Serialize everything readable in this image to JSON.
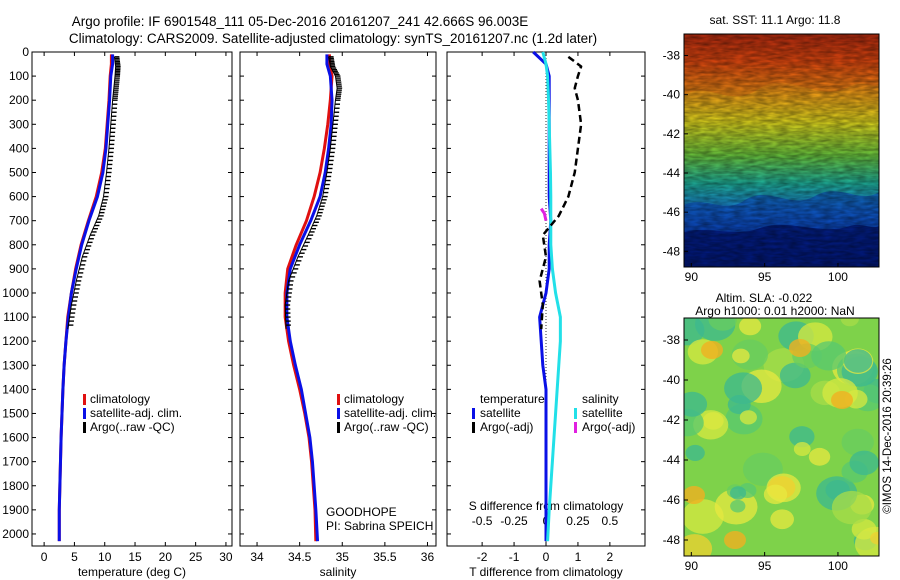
{
  "header": {
    "title": "Argo profile: IF 6901548_111 05-Dec-2016 20161207_241 42.666S 96.003E",
    "subtitle": "Climatology: CARS2009. Satellite-adjusted climatology: synTS_20161207.nc (1.2d later)"
  },
  "colors": {
    "climatology": "#e01010",
    "satellite": "#0a10e6",
    "argo": "#000000",
    "salinity_satellite": "#22e0e8",
    "salinity_argo": "#e020e0"
  },
  "chart_data": [
    {
      "type": "line",
      "id": "temperature",
      "xlabel": "temperature (deg C)",
      "xlim": [
        -2,
        31
      ],
      "ylim": [
        0,
        2050
      ],
      "y_inverted": true,
      "xticks": [
        0,
        5,
        10,
        15,
        20,
        25,
        30
      ],
      "yticks": [
        0,
        100,
        200,
        300,
        400,
        500,
        600,
        700,
        800,
        900,
        1000,
        1100,
        1200,
        1300,
        1400,
        1500,
        1600,
        1700,
        1800,
        1900,
        2000
      ],
      "legend": [
        "climatology",
        "satellite-adj. clim.",
        "Argo(..raw -QC)"
      ],
      "legend_loc": "lower-center",
      "series": [
        {
          "name": "climatology",
          "color_key": "climatology",
          "style": "solid",
          "x": [
            11.1,
            11.1,
            10.9,
            10.7,
            10.4,
            10.1,
            9.5,
            8.6,
            7.3,
            6.1,
            5.2,
            4.5,
            3.9,
            3.6,
            3.3,
            3.1,
            2.95,
            2.8,
            2.7,
            2.6,
            2.5,
            2.5
          ],
          "y": [
            10,
            50,
            100,
            200,
            300,
            400,
            500,
            600,
            700,
            800,
            900,
            1000,
            1100,
            1200,
            1300,
            1400,
            1500,
            1600,
            1700,
            1800,
            1900,
            2030
          ]
        },
        {
          "name": "satellite-adj. clim.",
          "color_key": "satellite",
          "style": "solid",
          "x": [
            11.3,
            11.3,
            11.0,
            10.8,
            10.5,
            10.2,
            9.7,
            8.8,
            7.4,
            6.2,
            5.3,
            4.5,
            4.0,
            3.6,
            3.3,
            3.1,
            2.95,
            2.8,
            2.7,
            2.6,
            2.5,
            2.5
          ],
          "y": [
            10,
            50,
            100,
            200,
            300,
            400,
            500,
            600,
            700,
            800,
            900,
            1000,
            1100,
            1200,
            1300,
            1400,
            1500,
            1600,
            1700,
            1800,
            1900,
            2030
          ]
        },
        {
          "name": "Argo(..raw -QC)",
          "color_key": "argo",
          "style": "ticks",
          "x": [
            11.6,
            11.8,
            11.7,
            11.5,
            11.3,
            11.0,
            10.7,
            10.3,
            9.8,
            9.0,
            7.6,
            6.3,
            5.3,
            4.5,
            3.9
          ],
          "y": [
            20,
            60,
            100,
            150,
            200,
            300,
            400,
            500,
            600,
            680,
            760,
            850,
            950,
            1050,
            1150
          ]
        }
      ]
    },
    {
      "type": "line",
      "id": "salinity",
      "xlabel": "salinity",
      "xlim": [
        33.8,
        36.1
      ],
      "ylim": [
        0,
        2050
      ],
      "y_inverted": true,
      "xticks": [
        34,
        34.5,
        35,
        35.5,
        36
      ],
      "legend": [
        "climatology",
        "satellite-adj. clim.",
        "Argo(..raw -QC)"
      ],
      "legend_loc": "lower-right",
      "annotation": [
        "GOODHOPE",
        "PI: Sabrina SPEICH"
      ],
      "series": [
        {
          "name": "climatology",
          "color_key": "climatology",
          "style": "solid",
          "x": [
            34.85,
            34.85,
            34.88,
            34.86,
            34.83,
            34.79,
            34.74,
            34.67,
            34.58,
            34.46,
            34.36,
            34.33,
            34.33,
            34.37,
            34.43,
            34.5,
            34.56,
            34.61,
            34.64,
            34.66,
            34.68,
            34.69
          ],
          "y": [
            10,
            50,
            100,
            200,
            300,
            400,
            500,
            600,
            700,
            800,
            900,
            1000,
            1100,
            1200,
            1300,
            1400,
            1500,
            1600,
            1700,
            1800,
            1900,
            2030
          ]
        },
        {
          "name": "satellite-adj. clim.",
          "color_key": "satellite",
          "style": "solid",
          "x": [
            34.82,
            34.82,
            34.86,
            34.88,
            34.87,
            34.84,
            34.8,
            34.74,
            34.63,
            34.5,
            34.39,
            34.35,
            34.35,
            34.39,
            34.45,
            34.52,
            34.57,
            34.62,
            34.65,
            34.67,
            34.69,
            34.71
          ],
          "y": [
            10,
            50,
            100,
            200,
            300,
            400,
            500,
            600,
            700,
            800,
            900,
            1000,
            1100,
            1200,
            1300,
            1400,
            1500,
            1600,
            1700,
            1800,
            1900,
            2030
          ]
        },
        {
          "name": "Argo(..raw -QC)",
          "color_key": "argo",
          "style": "ticks",
          "x": [
            34.84,
            34.86,
            34.92,
            34.94,
            34.92,
            34.89,
            34.86,
            34.82,
            34.77,
            34.7,
            34.6,
            34.48,
            34.37,
            34.33,
            34.34
          ],
          "y": [
            20,
            60,
            100,
            150,
            200,
            300,
            400,
            500,
            600,
            680,
            760,
            850,
            950,
            1050,
            1150
          ]
        }
      ]
    },
    {
      "type": "line",
      "id": "difference",
      "xlabel": "T difference from climatology",
      "xlabel_top": "S difference from climatology",
      "xlim": [
        -3.1,
        3.1
      ],
      "ylim": [
        0,
        2050
      ],
      "y_inverted": true,
      "xticks": [
        -2,
        -1,
        0,
        1,
        2
      ],
      "xticks_top": [
        "-0.5",
        "-0.25",
        "0",
        "0.25",
        "0.5"
      ],
      "legend_groups": [
        {
          "heading": "temperature",
          "items": [
            "satellite",
            "Argo(-adj)"
          ]
        },
        {
          "heading": "salinity",
          "items": [
            "satellite",
            "Argo(-adj)"
          ]
        }
      ],
      "series": [
        {
          "name": "temperature satellite",
          "color_key": "satellite",
          "style": "solid",
          "x": [
            -0.4,
            0.0,
            0.1,
            0.1,
            0.1,
            0.1,
            0.1,
            0.1,
            0.15,
            0.1,
            0.1,
            0.0,
            -0.2,
            -0.15,
            -0.1,
            0.0,
            0.0,
            0.0,
            0.0,
            0.0,
            0.0,
            0.0
          ],
          "y": [
            0,
            50,
            100,
            200,
            300,
            400,
            500,
            600,
            700,
            800,
            900,
            1000,
            1100,
            1200,
            1300,
            1400,
            1500,
            1600,
            1700,
            1800,
            1900,
            2030
          ]
        },
        {
          "name": "salinity satellite",
          "color_key": "salinity_satellite",
          "style": "solid",
          "x": [
            -0.1,
            0.0,
            0.05,
            0.08,
            0.1,
            0.12,
            0.14,
            0.15,
            0.15,
            0.15,
            0.2,
            0.3,
            0.45,
            0.45,
            0.4,
            0.35,
            0.3,
            0.25,
            0.2,
            0.15,
            0.1,
            0.05
          ],
          "y": [
            0,
            50,
            100,
            200,
            300,
            400,
            500,
            600,
            700,
            800,
            900,
            1000,
            1100,
            1200,
            1300,
            1400,
            1500,
            1600,
            1700,
            1800,
            1900,
            2030
          ]
        },
        {
          "name": "temperature Argo(-adj)",
          "color_key": "argo",
          "style": "dashed",
          "x": [
            0.7,
            1.1,
            1.0,
            0.9,
            1.0,
            1.1,
            1.0,
            0.9,
            0.7,
            0.4,
            -0.1,
            0.0,
            -0.2,
            -0.1,
            -0.15
          ],
          "y": [
            20,
            60,
            100,
            150,
            200,
            300,
            400,
            500,
            600,
            680,
            760,
            850,
            950,
            1050,
            1150
          ]
        },
        {
          "name": "salinity Argo(-adj)",
          "color_key": "salinity_argo",
          "style": "solid",
          "x": [
            -0.15,
            -0.05,
            0.0
          ],
          "y": [
            650,
            670,
            700
          ]
        }
      ]
    },
    {
      "type": "heatmap",
      "id": "sst-map",
      "title": "sat. SST: 11.1  Argo: 11.8",
      "xticks": [
        90,
        95,
        100
      ],
      "yticks": [
        -38,
        -40,
        -42,
        -44,
        -46,
        -48
      ],
      "xlim": [
        89.5,
        102.8
      ],
      "ylim": [
        -48.8,
        -36.9
      ],
      "colormap": "jet",
      "value_note": "warm north, cold south"
    },
    {
      "type": "heatmap",
      "id": "sla-map",
      "title": "Altim. SLA: -0.022",
      "subtitle": "Argo h1000: 0.01 h2000: NaN",
      "xticks": [
        90,
        95,
        100
      ],
      "yticks": [
        -38,
        -40,
        -42,
        -44,
        -46,
        -48
      ],
      "xlim": [
        89.5,
        102.8
      ],
      "ylim": [
        -48.8,
        -36.9
      ],
      "colormap": "jet",
      "side_label": "©IMOS 14-Dec-2016 20:39:26"
    }
  ]
}
